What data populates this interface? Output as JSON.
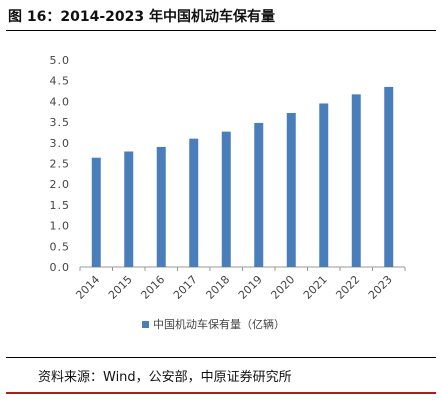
{
  "figure_title": "图 16：2014-2023 年中国机动车保有量",
  "source_note": "资料来源：Wind，公安部，中原证券研究所",
  "chart_data": {
    "type": "bar",
    "categories": [
      "2014",
      "2015",
      "2016",
      "2017",
      "2018",
      "2019",
      "2020",
      "2021",
      "2022",
      "2023"
    ],
    "series": [
      {
        "name": "中国机动车保有量（亿辆）",
        "values": [
          2.64,
          2.79,
          2.9,
          3.1,
          3.27,
          3.48,
          3.72,
          3.95,
          4.17,
          4.35
        ]
      }
    ],
    "yticks": [
      "0.0",
      "0.5",
      "1.0",
      "1.5",
      "2.0",
      "2.5",
      "3.0",
      "3.5",
      "4.0",
      "4.5",
      "5.0"
    ],
    "ylim": [
      0,
      5
    ],
    "grid": false,
    "legend_position": "bottom",
    "bar_color": "#4a7ebb"
  }
}
